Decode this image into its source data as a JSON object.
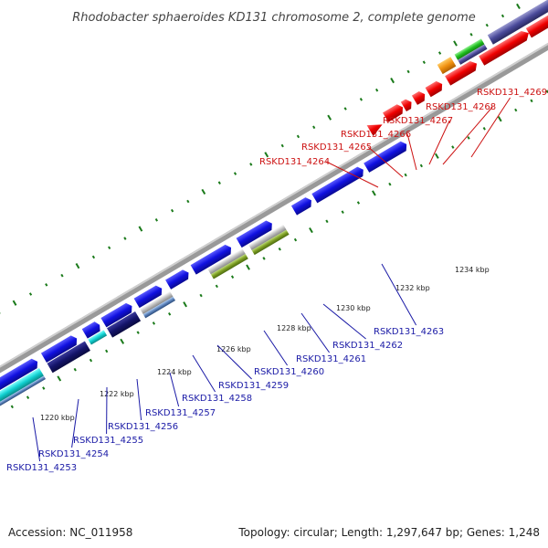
{
  "title": "Rhodobacter sphaeroides KD131 chromosome 2, complete genome",
  "footer": {
    "accession": "Accession: NC_011958",
    "summary": "Topology: circular; Length: 1,297,647 bp; Genes: 1,248"
  },
  "kbp_labels": [
    "1220 kbp",
    "1222 kbp",
    "1224 kbp",
    "1226 kbp",
    "1228 kbp",
    "1230 kbp",
    "1232 kbp",
    "1234 kbp"
  ],
  "top_gene_labels": [
    "RSKD131_4264",
    "RSKD131_4265",
    "RSKD131_4266",
    "RSKD131_4267",
    "RSKD131_4268",
    "RSKD131_4269"
  ],
  "bottom_gene_labels": [
    "RSKD131_4253",
    "RSKD131_4254",
    "RSKD131_4255",
    "RSKD131_4256",
    "RSKD131_4257",
    "RSKD131_4258",
    "RSKD131_4259",
    "RSKD131_4260",
    "RSKD131_4261",
    "RSKD131_4262",
    "RSKD131_4263"
  ],
  "colors": {
    "top_label": "#cc1111",
    "bottom_label": "#1a1aa6",
    "ticks": "#1a7a1a",
    "backbone": "#888888",
    "gene_blue": "#1a1ae6",
    "gene_red": "#ff0000"
  }
}
